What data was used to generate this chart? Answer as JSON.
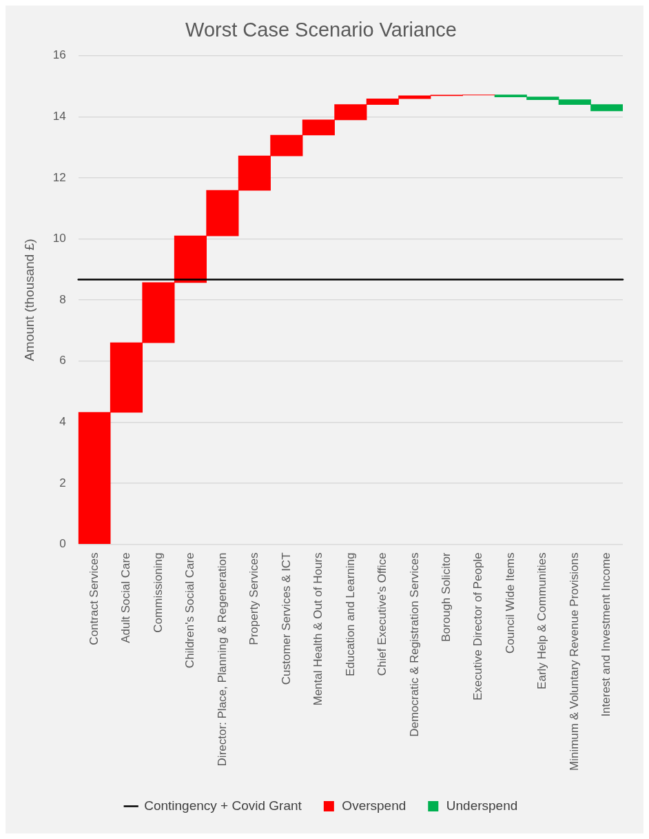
{
  "chart_data": {
    "type": "bar",
    "title": "Worst Case Scenario Variance",
    "ylabel": "Amount (thousand £)",
    "categories": [
      "Contract Services",
      "Adult Social Care",
      "Commissioning",
      "Children's Social Care",
      "Director: Place, Planning & Regeneration",
      "Property Services",
      "Customer Services & ICT",
      "Mental Health & Out of Hours",
      "Education and Learning",
      "Chief Executive's Office",
      "Democratic & Registration Services",
      "Borough Solicitor",
      "Executive Director of People",
      "Council Wide Items",
      "Early Help & Communities",
      "Minimum & Voluntary Revenue Provisions",
      "Interest and Investment Income"
    ],
    "series": [
      {
        "name": "Overspend",
        "color": "#ff0000",
        "base": [
          0,
          4.32,
          6.6,
          8.57,
          10.1,
          11.59,
          12.72,
          13.4,
          13.9,
          14.4,
          14.59,
          14.69,
          14.71,
          null,
          null,
          null,
          null
        ],
        "values": [
          4.32,
          2.28,
          1.97,
          1.53,
          1.49,
          1.13,
          0.68,
          0.5,
          0.5,
          0.19,
          0.1,
          0.02,
          0.01,
          null,
          null,
          null,
          null
        ]
      },
      {
        "name": "Underspend",
        "color": "#00b050",
        "base": [
          null,
          null,
          null,
          null,
          null,
          null,
          null,
          null,
          null,
          null,
          null,
          null,
          null,
          14.72,
          14.65,
          14.56,
          14.4
        ],
        "values": [
          null,
          null,
          null,
          null,
          null,
          null,
          null,
          null,
          null,
          null,
          null,
          null,
          null,
          -0.07,
          -0.09,
          -0.16,
          -0.21
        ]
      }
    ],
    "ref_lines": [
      {
        "axis": "y",
        "value": 8.67,
        "label": "Contingency + Covid Grant",
        "color": "#000000",
        "line_style": "solid"
      }
    ],
    "ylim": [
      0,
      16
    ],
    "yticks": [
      0,
      2,
      4,
      6,
      8,
      10,
      12,
      14,
      16
    ],
    "grid": "y",
    "legend": "bottom"
  }
}
